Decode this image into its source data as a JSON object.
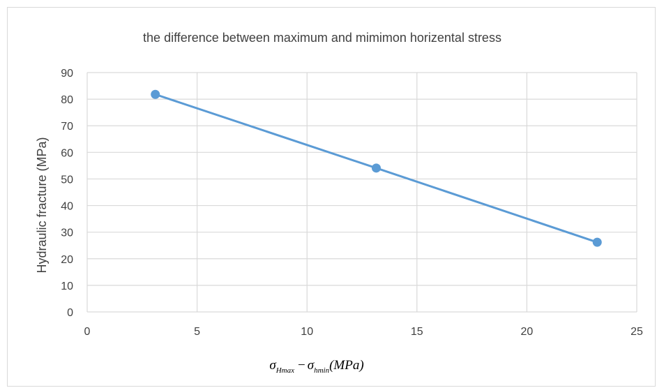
{
  "chart_data": {
    "type": "line",
    "title": "the difference between maximum and mimimon horizental stress",
    "ylabel": "Hydraulic fracture (MPa)",
    "xlabel": {
      "sigma": "σ",
      "sub_max": "Hmax",
      "minus": "−",
      "sub_min": "hmin",
      "unit": "(MPa)"
    },
    "xlim": [
      0,
      25
    ],
    "ylim": [
      0,
      90
    ],
    "xticks": [
      "0",
      "5",
      "10",
      "15",
      "20",
      "25"
    ],
    "yticks": [
      "0",
      "10",
      "20",
      "30",
      "40",
      "50",
      "60",
      "70",
      "80",
      "90"
    ],
    "grid": true,
    "legend": "none",
    "series": [
      {
        "x": [
          3.1,
          13.15,
          23.2
        ],
        "y": [
          81.8,
          54.1,
          26.2
        ],
        "color": "#5b9bd5"
      }
    ],
    "colors": {
      "gridline": "#d9d9d9",
      "axis_text": "#404040",
      "frame": "#d9d9d9"
    }
  }
}
